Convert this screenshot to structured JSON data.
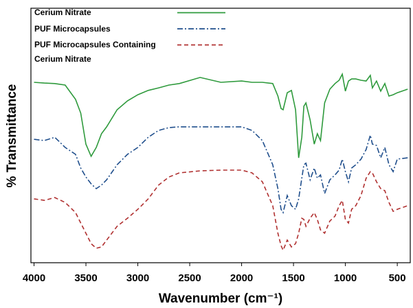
{
  "chart_data": {
    "type": "line",
    "x_label": "Wavenumber (cm⁻¹)",
    "y_label": "% Transmittance",
    "xlim": [
      4030,
      375
    ],
    "ylim": [
      0,
      100
    ],
    "xticks": [
      4000,
      3500,
      3000,
      2500,
      2000,
      1500,
      1000,
      500
    ],
    "legend": "upper-left",
    "x": [
      4000,
      3900,
      3800,
      3700,
      3600,
      3550,
      3500,
      3450,
      3400,
      3350,
      3300,
      3200,
      3100,
      3000,
      2900,
      2800,
      2700,
      2600,
      2400,
      2200,
      2000,
      1900,
      1800,
      1700,
      1650,
      1620,
      1600,
      1560,
      1520,
      1480,
      1450,
      1420,
      1400,
      1380,
      1340,
      1300,
      1270,
      1240,
      1200,
      1150,
      1100,
      1060,
      1030,
      1000,
      970,
      940,
      900,
      850,
      800,
      760,
      740,
      700,
      660,
      620,
      580,
      540,
      500,
      400
    ],
    "series": [
      {
        "name": "Cerium Nitrate",
        "color": "#2e9a3c",
        "dash": "solid",
        "values": [
          70.9,
          70.6,
          70.4,
          69.8,
          64.2,
          58.8,
          46.6,
          41.8,
          45.3,
          50.7,
          53.4,
          60.1,
          63.6,
          66.0,
          67.7,
          68.7,
          69.8,
          70.4,
          72.8,
          70.9,
          71.4,
          70.9,
          70.9,
          70.4,
          65.5,
          60.6,
          60.1,
          66.8,
          67.7,
          60.1,
          41.2,
          49.3,
          61.5,
          62.8,
          56.1,
          46.6,
          50.7,
          48.0,
          62.8,
          68.2,
          70.4,
          71.7,
          74.1,
          67.4,
          71.4,
          72.2,
          72.2,
          71.7,
          71.4,
          73.6,
          68.7,
          71.4,
          67.4,
          70.4,
          65.5,
          66.0,
          66.8,
          68.2
        ]
      },
      {
        "name": "PUF Microcapsules",
        "color": "#1f4e8c",
        "dash": "dashdot",
        "values": [
          48.5,
          48.0,
          49.3,
          45.3,
          42.6,
          37.2,
          33.7,
          31.0,
          29.1,
          30.5,
          32.6,
          38.5,
          42.6,
          45.3,
          49.3,
          52.0,
          53.1,
          53.4,
          53.4,
          53.4,
          53.4,
          52.0,
          48.0,
          38.5,
          29.1,
          21.0,
          19.7,
          26.4,
          22.4,
          21.0,
          25.1,
          33.2,
          38.5,
          39.1,
          32.6,
          37.2,
          33.2,
          34.5,
          27.2,
          32.6,
          34.5,
          36.4,
          40.7,
          35.8,
          31.8,
          37.2,
          38.5,
          40.7,
          44.5,
          50.1,
          46.6,
          46.1,
          41.2,
          45.3,
          38.5,
          35.8,
          40.7,
          41.2
        ]
      },
      {
        "name": "PUF Microcapsules Containing Cerium Nitrate",
        "color": "#b03030",
        "dash": "dashed",
        "values": [
          25.1,
          24.5,
          25.6,
          23.7,
          19.7,
          15.6,
          11.6,
          7.5,
          5.7,
          6.2,
          8.9,
          14.3,
          17.5,
          21.0,
          25.1,
          30.5,
          33.7,
          35.3,
          36.1,
          36.4,
          36.4,
          35.3,
          31.8,
          22.4,
          11.6,
          6.7,
          4.9,
          8.9,
          6.2,
          7.5,
          11.6,
          17.5,
          17.0,
          14.3,
          17.5,
          19.7,
          17.0,
          12.9,
          11.6,
          16.4,
          18.3,
          22.4,
          24.5,
          17.0,
          15.6,
          21.0,
          22.4,
          26.4,
          33.2,
          35.8,
          35.3,
          31.8,
          29.1,
          28.3,
          23.7,
          20.2,
          21.0,
          22.4
        ]
      }
    ]
  }
}
